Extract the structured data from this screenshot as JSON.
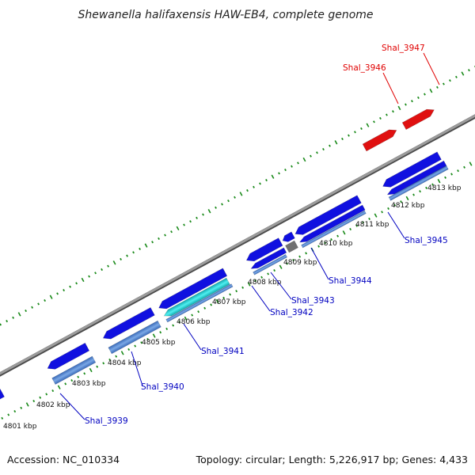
{
  "title": "Shewanella halifaxensis HAW-EB4, complete genome",
  "footer": {
    "accession": "Accession: NC_010334",
    "stats": "Topology: circular; Length: 5,226,917 bp; Genes: 4,433"
  },
  "colors": {
    "backbone": "#8f8f8f",
    "forward_gene": "#e01010",
    "reverse_gene": "#1010e0",
    "reverse_cds": "#5a8ad2",
    "rna_feature": "#20c8c8",
    "other_feature": "#707070",
    "dots": "#1a8a1a",
    "forward_label": "#e00000",
    "reverse_label": "#0000c0"
  },
  "scale": {
    "ticks": [
      "4801 kbp",
      "4802 kbp",
      "4803 kbp",
      "4804 kbp",
      "4805 kbp",
      "4806 kbp",
      "4807 kbp",
      "4808 kbp",
      "4809 kbp",
      "4810 kbp",
      "4811 kbp",
      "4812 kbp",
      "4813 kbp"
    ]
  },
  "gene_labels": [
    {
      "text": "Shal_3939",
      "strand": "reverse"
    },
    {
      "text": "Shal_3940",
      "strand": "reverse"
    },
    {
      "text": "Shal_3941",
      "strand": "reverse"
    },
    {
      "text": "Shal_3942",
      "strand": "reverse"
    },
    {
      "text": "Shal_3943",
      "strand": "reverse"
    },
    {
      "text": "Shal_3944",
      "strand": "reverse"
    },
    {
      "text": "Shal_3945",
      "strand": "reverse"
    },
    {
      "text": "Shal_3946",
      "strand": "forward"
    },
    {
      "text": "Shal_3947",
      "strand": "forward"
    }
  ]
}
